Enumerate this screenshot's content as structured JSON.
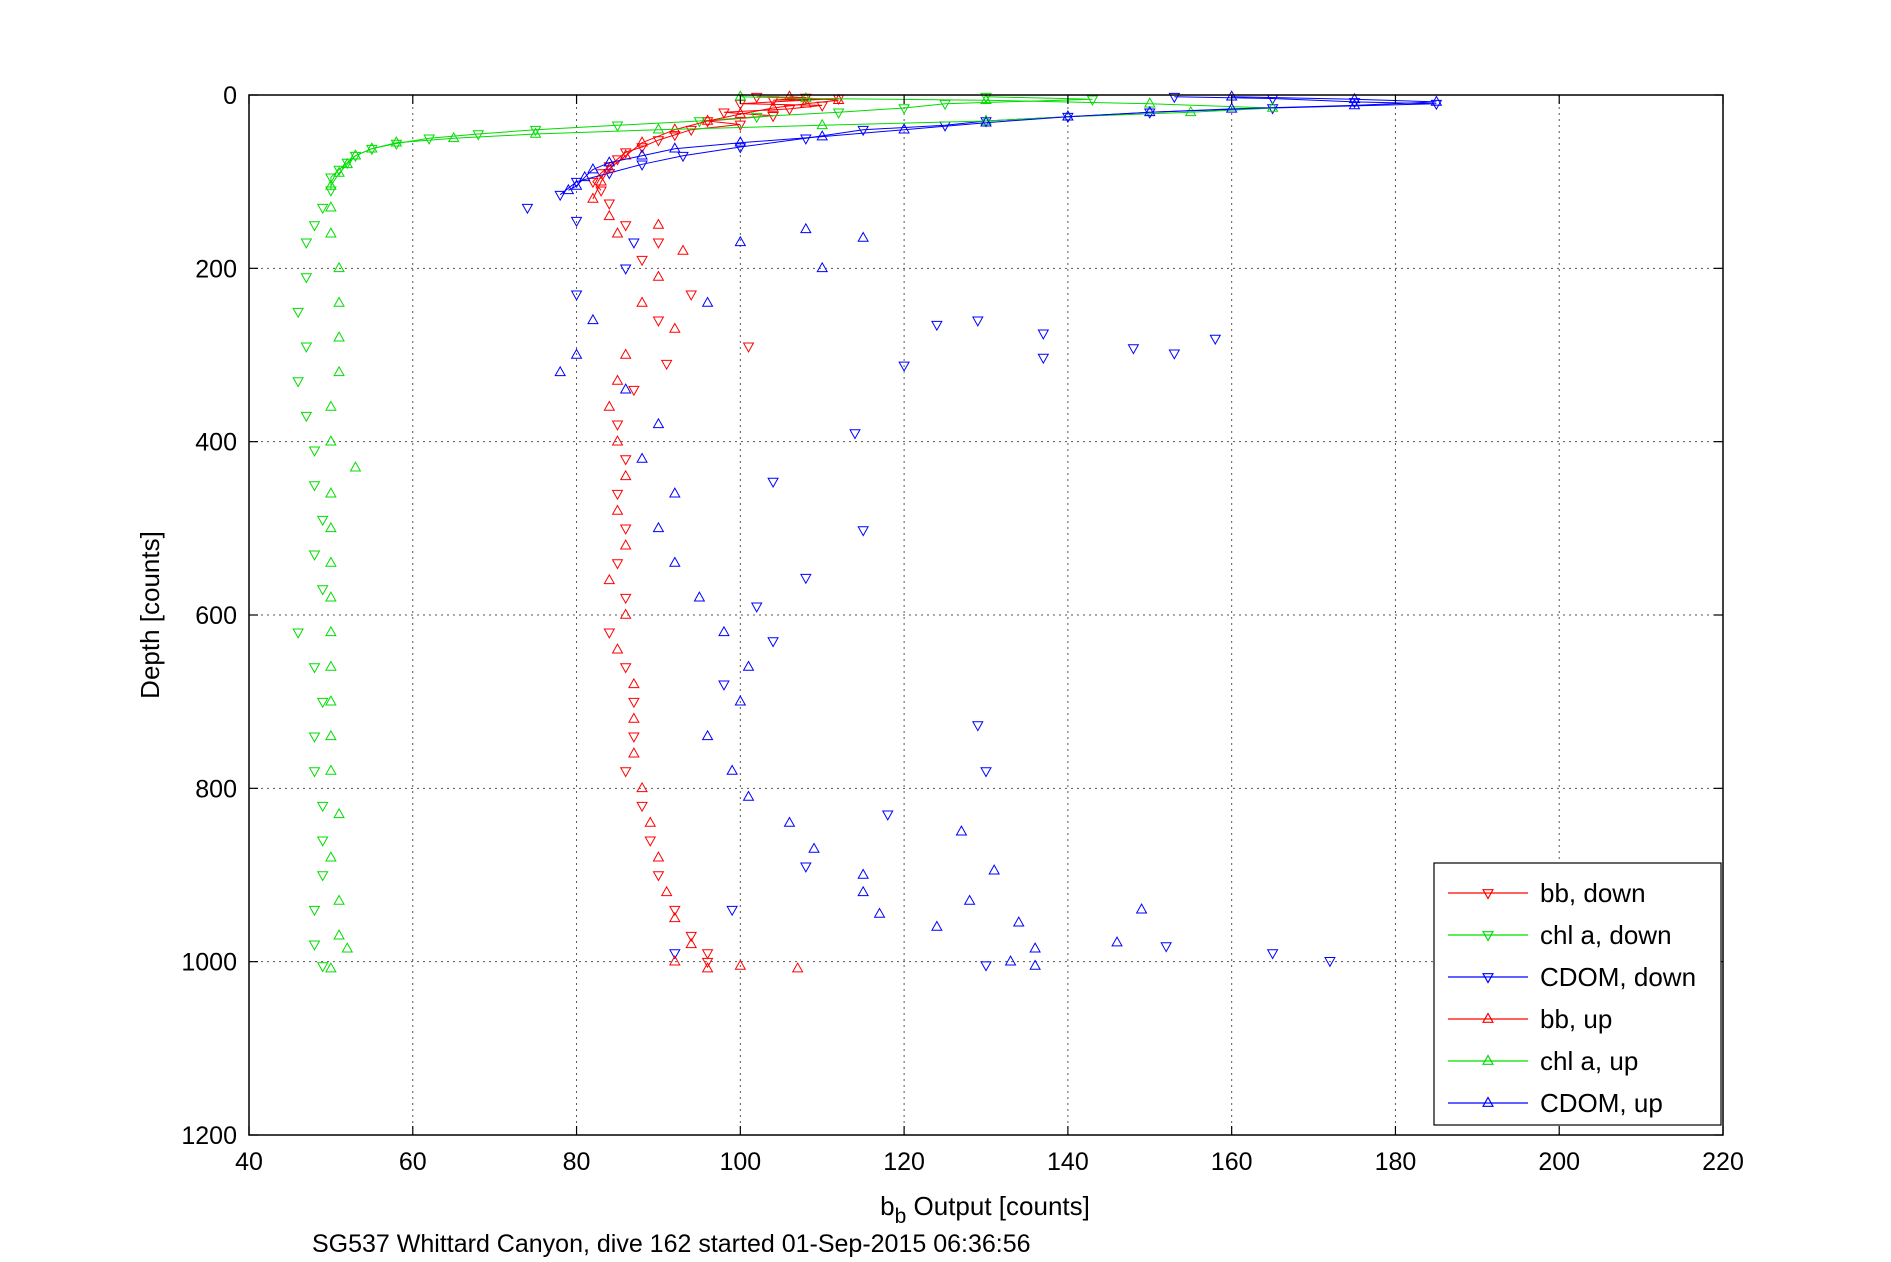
{
  "chart_data": {
    "type": "scatter",
    "title": "",
    "caption": "SG537 Whittard Canyon, dive 162 started 01-Sep-2015 06:36:56",
    "xlabel_main": "b",
    "xlabel_sub": "b",
    "xlabel_rest": " Output [counts]",
    "ylabel": "Depth [counts]",
    "xlim": [
      40,
      220
    ],
    "ylim": [
      0,
      1200
    ],
    "y_reversed": true,
    "grid": true,
    "xticks": [
      "40",
      "60",
      "80",
      "100",
      "120",
      "140",
      "160",
      "180",
      "200",
      "220"
    ],
    "yticks": [
      "0",
      "200",
      "400",
      "600",
      "800",
      "1000",
      "1200"
    ],
    "legend_position": "bottom-right",
    "series": [
      {
        "name": "bb, down",
        "color": "#ff0000",
        "marker": "triangle-down",
        "points": [
          [
            102,
            2
          ],
          [
            108,
            3
          ],
          [
            104,
            6
          ],
          [
            112,
            4
          ],
          [
            100,
            10
          ],
          [
            110,
            12
          ],
          [
            106,
            16
          ],
          [
            98,
            20
          ],
          [
            104,
            24
          ],
          [
            96,
            30
          ],
          [
            100,
            34
          ],
          [
            94,
            40
          ],
          [
            92,
            46
          ],
          [
            90,
            52
          ],
          [
            88,
            60
          ],
          [
            86,
            66
          ],
          [
            85,
            74
          ],
          [
            84,
            82
          ],
          [
            83,
            90
          ],
          [
            82,
            100
          ],
          [
            83,
            110
          ],
          [
            84,
            125
          ],
          [
            86,
            150
          ],
          [
            90,
            170
          ],
          [
            88,
            190
          ],
          [
            94,
            230
          ],
          [
            90,
            260
          ],
          [
            101,
            290
          ],
          [
            91,
            310
          ],
          [
            87,
            340
          ],
          [
            85,
            380
          ],
          [
            86,
            420
          ],
          [
            85,
            460
          ],
          [
            86,
            500
          ],
          [
            85,
            540
          ],
          [
            86,
            580
          ],
          [
            84,
            620
          ],
          [
            86,
            660
          ],
          [
            87,
            700
          ],
          [
            87,
            740
          ],
          [
            86,
            780
          ],
          [
            88,
            820
          ],
          [
            89,
            860
          ],
          [
            90,
            900
          ],
          [
            92,
            940
          ],
          [
            94,
            970
          ],
          [
            96,
            990
          ],
          [
            96,
            1000
          ]
        ]
      },
      {
        "name": "chl a, down",
        "color": "#00dd00",
        "marker": "triangle-down",
        "points": [
          [
            130,
            2
          ],
          [
            143,
            5
          ],
          [
            125,
            10
          ],
          [
            120,
            15
          ],
          [
            112,
            20
          ],
          [
            102,
            25
          ],
          [
            95,
            30
          ],
          [
            85,
            35
          ],
          [
            75,
            40
          ],
          [
            68,
            45
          ],
          [
            62,
            50
          ],
          [
            58,
            56
          ],
          [
            55,
            62
          ],
          [
            53,
            70
          ],
          [
            52,
            78
          ],
          [
            51,
            86
          ],
          [
            50,
            95
          ],
          [
            50,
            110
          ],
          [
            49,
            130
          ],
          [
            48,
            150
          ],
          [
            47,
            170
          ],
          [
            47,
            210
          ],
          [
            46,
            250
          ],
          [
            47,
            290
          ],
          [
            46,
            330
          ],
          [
            47,
            370
          ],
          [
            48,
            410
          ],
          [
            48,
            450
          ],
          [
            49,
            490
          ],
          [
            48,
            530
          ],
          [
            49,
            570
          ],
          [
            46,
            620
          ],
          [
            48,
            660
          ],
          [
            49,
            700
          ],
          [
            48,
            740
          ],
          [
            48,
            780
          ],
          [
            49,
            820
          ],
          [
            49,
            860
          ],
          [
            49,
            900
          ],
          [
            48,
            940
          ],
          [
            48,
            980
          ],
          [
            49,
            1005
          ]
        ]
      },
      {
        "name": "CDOM, down",
        "color": "#0000ff",
        "marker": "triangle-down",
        "points": [
          [
            153,
            2
          ],
          [
            165,
            4
          ],
          [
            175,
            8
          ],
          [
            185,
            10
          ],
          [
            165,
            15
          ],
          [
            150,
            20
          ],
          [
            140,
            25
          ],
          [
            130,
            30
          ],
          [
            125,
            35
          ],
          [
            115,
            40
          ],
          [
            108,
            50
          ],
          [
            100,
            60
          ],
          [
            93,
            70
          ],
          [
            88,
            80
          ],
          [
            84,
            90
          ],
          [
            80,
            100
          ],
          [
            78,
            115
          ],
          [
            74,
            130
          ],
          [
            80,
            145
          ],
          [
            87,
            170
          ],
          [
            86,
            200
          ],
          [
            80,
            230
          ],
          [
            129,
            260
          ],
          [
            124,
            265
          ],
          [
            137,
            275
          ],
          [
            148,
            292
          ],
          [
            137,
            303
          ],
          [
            120,
            312
          ],
          [
            153,
            298
          ],
          [
            158,
            281
          ],
          [
            114,
            390
          ],
          [
            104,
            446
          ],
          [
            115,
            502
          ],
          [
            108,
            557
          ],
          [
            102,
            590
          ],
          [
            104,
            630
          ],
          [
            98,
            680
          ],
          [
            129,
            727
          ],
          [
            130,
            780
          ],
          [
            118,
            830
          ],
          [
            108,
            890
          ],
          [
            99,
            940
          ],
          [
            92,
            990
          ],
          [
            152,
            982
          ],
          [
            165,
            990
          ],
          [
            172,
            999
          ],
          [
            130,
            1004
          ]
        ]
      },
      {
        "name": "bb, up",
        "color": "#ff0000",
        "marker": "triangle-up",
        "points": [
          [
            106,
            2
          ],
          [
            112,
            6
          ],
          [
            108,
            10
          ],
          [
            104,
            15
          ],
          [
            100,
            22
          ],
          [
            96,
            30
          ],
          [
            92,
            40
          ],
          [
            88,
            55
          ],
          [
            86,
            70
          ],
          [
            84,
            85
          ],
          [
            83,
            100
          ],
          [
            82,
            120
          ],
          [
            84,
            140
          ],
          [
            85,
            160
          ],
          [
            90,
            150
          ],
          [
            93,
            180
          ],
          [
            90,
            210
          ],
          [
            88,
            240
          ],
          [
            92,
            270
          ],
          [
            86,
            300
          ],
          [
            85,
            330
          ],
          [
            84,
            360
          ],
          [
            85,
            400
          ],
          [
            86,
            440
          ],
          [
            85,
            480
          ],
          [
            86,
            520
          ],
          [
            84,
            560
          ],
          [
            86,
            600
          ],
          [
            85,
            640
          ],
          [
            87,
            680
          ],
          [
            87,
            720
          ],
          [
            87,
            760
          ],
          [
            88,
            800
          ],
          [
            89,
            840
          ],
          [
            90,
            880
          ],
          [
            91,
            920
          ],
          [
            92,
            950
          ],
          [
            94,
            980
          ],
          [
            92,
            1000
          ],
          [
            96,
            1008
          ],
          [
            100,
            1005
          ],
          [
            107,
            1008
          ]
        ]
      },
      {
        "name": "chl a, up",
        "color": "#00dd00",
        "marker": "triangle-up",
        "points": [
          [
            100,
            2
          ],
          [
            108,
            4
          ],
          [
            130,
            6
          ],
          [
            150,
            10
          ],
          [
            165,
            15
          ],
          [
            155,
            20
          ],
          [
            140,
            25
          ],
          [
            130,
            30
          ],
          [
            110,
            35
          ],
          [
            90,
            40
          ],
          [
            75,
            45
          ],
          [
            65,
            50
          ],
          [
            58,
            55
          ],
          [
            55,
            62
          ],
          [
            53,
            70
          ],
          [
            52,
            80
          ],
          [
            51,
            90
          ],
          [
            50,
            105
          ],
          [
            50,
            130
          ],
          [
            50,
            160
          ],
          [
            51,
            200
          ],
          [
            51,
            240
          ],
          [
            51,
            280
          ],
          [
            51,
            320
          ],
          [
            50,
            360
          ],
          [
            50,
            400
          ],
          [
            53,
            430
          ],
          [
            50,
            460
          ],
          [
            50,
            500
          ],
          [
            50,
            540
          ],
          [
            50,
            580
          ],
          [
            50,
            620
          ],
          [
            50,
            660
          ],
          [
            50,
            700
          ],
          [
            50,
            740
          ],
          [
            50,
            780
          ],
          [
            51,
            830
          ],
          [
            50,
            880
          ],
          [
            51,
            930
          ],
          [
            51,
            970
          ],
          [
            52,
            985
          ],
          [
            50,
            1008
          ]
        ]
      },
      {
        "name": "CDOM, up",
        "color": "#0000ff",
        "marker": "triangle-up",
        "points": [
          [
            160,
            2
          ],
          [
            175,
            5
          ],
          [
            185,
            8
          ],
          [
            175,
            12
          ],
          [
            160,
            16
          ],
          [
            150,
            20
          ],
          [
            140,
            25
          ],
          [
            130,
            32
          ],
          [
            120,
            40
          ],
          [
            110,
            48
          ],
          [
            100,
            55
          ],
          [
            92,
            62
          ],
          [
            88,
            70
          ],
          [
            84,
            78
          ],
          [
            82,
            86
          ],
          [
            81,
            95
          ],
          [
            80,
            105
          ],
          [
            79,
            110
          ],
          [
            100,
            170
          ],
          [
            108,
            155
          ],
          [
            115,
            165
          ],
          [
            110,
            200
          ],
          [
            96,
            240
          ],
          [
            82,
            260
          ],
          [
            80,
            300
          ],
          [
            78,
            320
          ],
          [
            86,
            340
          ],
          [
            90,
            380
          ],
          [
            88,
            420
          ],
          [
            92,
            460
          ],
          [
            90,
            500
          ],
          [
            92,
            540
          ],
          [
            95,
            580
          ],
          [
            98,
            620
          ],
          [
            101,
            660
          ],
          [
            100,
            700
          ],
          [
            96,
            740
          ],
          [
            99,
            780
          ],
          [
            101,
            810
          ],
          [
            106,
            840
          ],
          [
            109,
            870
          ],
          [
            115,
            900
          ],
          [
            115,
            920
          ],
          [
            117,
            945
          ],
          [
            124,
            960
          ],
          [
            128,
            930
          ],
          [
            131,
            895
          ],
          [
            127,
            850
          ],
          [
            134,
            955
          ],
          [
            136,
            985
          ],
          [
            146,
            978
          ],
          [
            149,
            940
          ],
          [
            133,
            1000
          ],
          [
            136,
            1005
          ]
        ]
      }
    ]
  }
}
